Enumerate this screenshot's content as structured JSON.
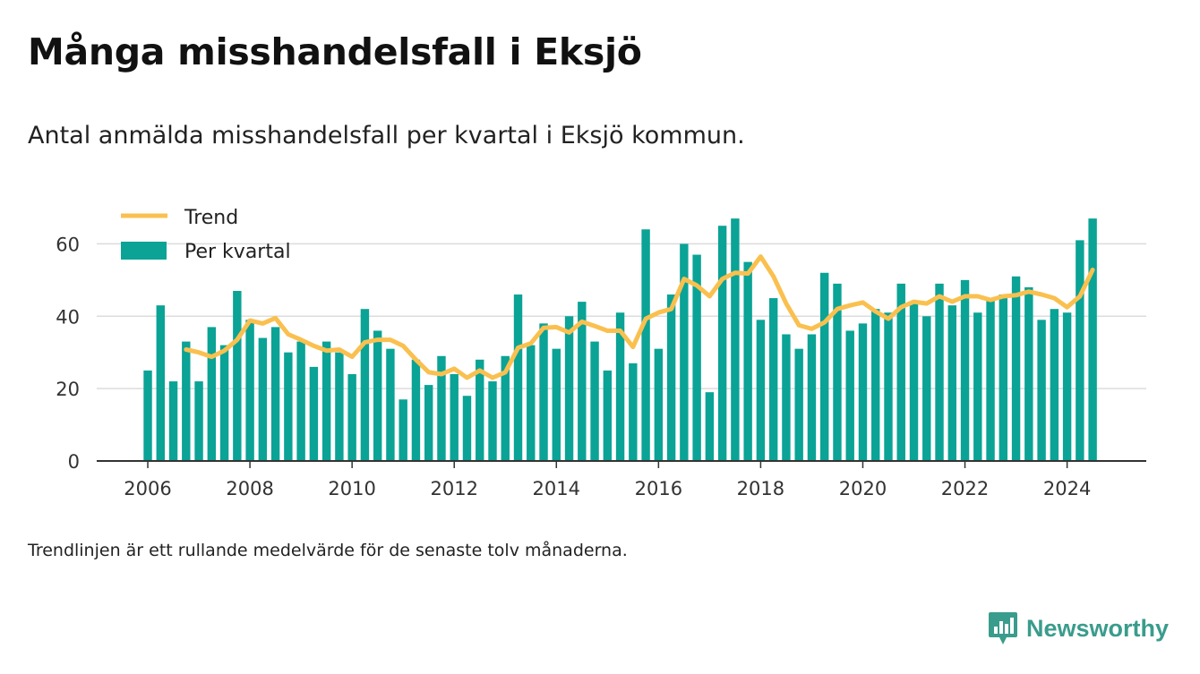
{
  "header": {
    "title": "Många misshandelsfall i Eksjö",
    "subtitle": "Antal anmälda misshandelsfall per kvartal i Eksjö kommun."
  },
  "footer": {
    "note": "Trendlinjen är ett rullande medelvärde för de senaste tolv månaderna.",
    "brand": "Newsworthy"
  },
  "colors": {
    "bar": "#0aa396",
    "trend": "#fac04f",
    "grid": "#dcdcdc",
    "axis": "#333333",
    "brand": "#3a9c8c"
  },
  "chart_data": {
    "type": "bar",
    "legend": {
      "placement": "top-left",
      "items": [
        "Trend",
        "Per kvartal"
      ]
    },
    "x_ticks": [
      "2006",
      "2008",
      "2010",
      "2012",
      "2014",
      "2016",
      "2018",
      "2020",
      "2022",
      "2024"
    ],
    "y_ticks": [
      "0",
      "20",
      "40",
      "60"
    ],
    "ylim": [
      0,
      70
    ],
    "xlim": [
      2005.0,
      2025.55
    ],
    "grid": true,
    "series": [
      {
        "name": "Per kvartal",
        "type": "bar",
        "x_start": "2006 Q1",
        "values": [
          25,
          43,
          22,
          33,
          22,
          37,
          32,
          47,
          39,
          34,
          37,
          30,
          33,
          26,
          33,
          30,
          24,
          42,
          36,
          31,
          17,
          28,
          21,
          29,
          24,
          18,
          28,
          22,
          29,
          46,
          32,
          38,
          31,
          40,
          44,
          33,
          25,
          41,
          27,
          64,
          31,
          46,
          60,
          57,
          19,
          65,
          67,
          55,
          39,
          45,
          35,
          31,
          35,
          52,
          49,
          36,
          38,
          42,
          41,
          49,
          44,
          40,
          49,
          43,
          50,
          41,
          45,
          46,
          51,
          48,
          39,
          42,
          41,
          61,
          67
        ]
      },
      {
        "name": "Trend",
        "type": "line",
        "x_start": "2006 Q4",
        "values": [
          30.8,
          30.0,
          28.8,
          30.5,
          33.5,
          38.8,
          38.0,
          39.5,
          35.0,
          33.5,
          31.8,
          30.5,
          30.8,
          28.8,
          32.8,
          33.5,
          33.5,
          31.8,
          28.0,
          24.5,
          24.0,
          25.5,
          23.0,
          25.0,
          23.0,
          24.5,
          31.3,
          32.5,
          36.8,
          37.0,
          35.5,
          38.5,
          37.3,
          36.0,
          36.0,
          31.5,
          39.3,
          41.0,
          42.0,
          50.3,
          48.5,
          45.5,
          50.3,
          52.0,
          51.8,
          56.5,
          51.0,
          43.5,
          37.5,
          36.5,
          38.3,
          42.0,
          43.0,
          43.8,
          41.3,
          39.3,
          42.5,
          44.0,
          43.5,
          45.5,
          44.0,
          45.5,
          45.5,
          44.5,
          45.5,
          45.8,
          46.8,
          46.0,
          45.0,
          42.5,
          45.5,
          52.8
        ]
      }
    ]
  }
}
